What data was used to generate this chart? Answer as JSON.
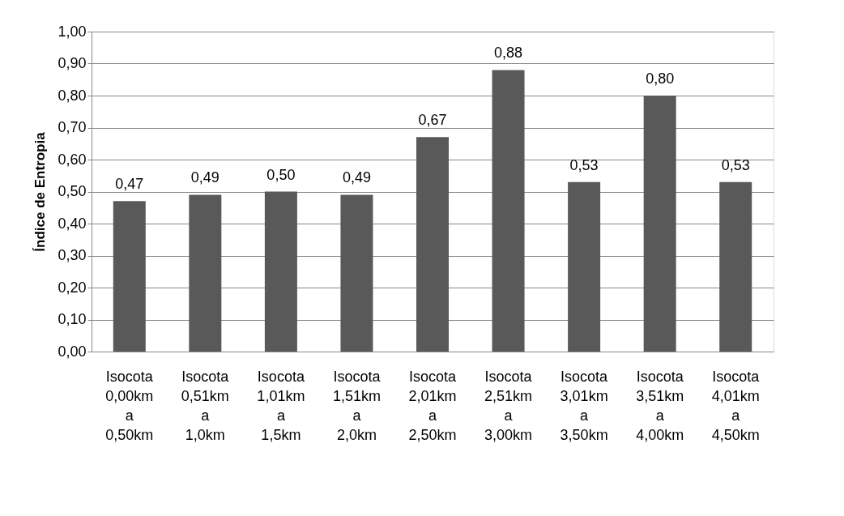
{
  "chart_data": {
    "type": "bar",
    "ylabel": "Índice de Entropia",
    "categories": [
      "Isocota\n0,00km\na\n0,50km",
      "Isocota\n0,51km\na\n1,0km",
      "Isocota\n1,01km\na\n1,5km",
      "Isocota\n1,51km\na\n2,0km",
      "Isocota\n2,01km\na\n2,50km",
      "Isocota\n2,51km\na\n3,00km",
      "Isocota\n3,01km\na\n3,50km",
      "Isocota\n3,51km\na\n4,00km",
      "Isocota\n4,01km\na\n4,50km"
    ],
    "values": [
      0.47,
      0.49,
      0.5,
      0.49,
      0.67,
      0.88,
      0.53,
      0.8,
      0.53
    ],
    "value_labels": [
      "0,47",
      "0,49",
      "0,50",
      "0,49",
      "0,67",
      "0,88",
      "0,53",
      "0,80",
      "0,53"
    ],
    "color": "#595959",
    "ylim": [
      0,
      1
    ],
    "yticks": [
      {
        "value": 0,
        "label": "0,00"
      },
      {
        "value": 0.1,
        "label": "0,10"
      },
      {
        "value": 0.2,
        "label": "0,20"
      },
      {
        "value": 0.3,
        "label": "0,30"
      },
      {
        "value": 0.4,
        "label": "0,40"
      },
      {
        "value": 0.5,
        "label": "0,50"
      },
      {
        "value": 0.6,
        "label": "0,60"
      },
      {
        "value": 0.7,
        "label": "0,70"
      },
      {
        "value": 0.8,
        "label": "0,80"
      },
      {
        "value": 0.9,
        "label": "0,90"
      },
      {
        "value": 1,
        "label": "1,00"
      }
    ],
    "grid": "y"
  }
}
